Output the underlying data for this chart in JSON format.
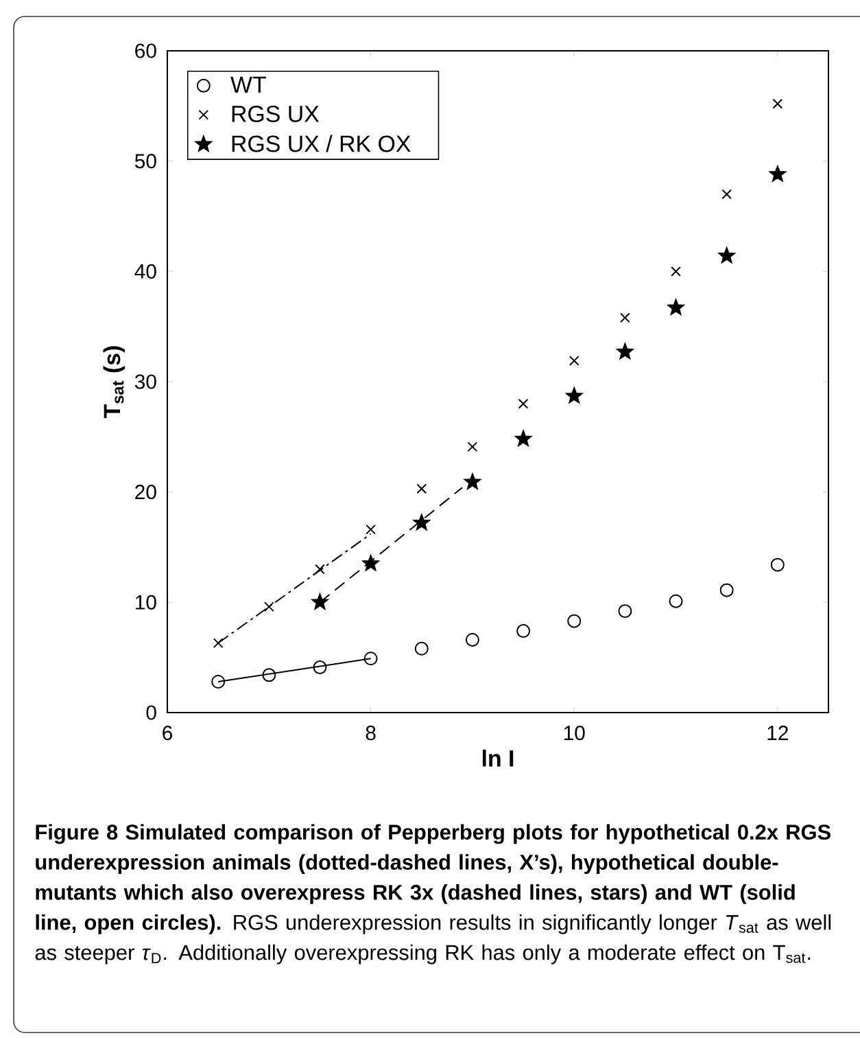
{
  "chart_data": {
    "type": "scatter",
    "xlabel": "ln I",
    "ylabel": "T$_{sat}$ (s)",
    "xlim": [
      6,
      12.5
    ],
    "xticks": [
      6,
      8,
      10,
      12
    ],
    "ylim": [
      0,
      60
    ],
    "yticks": [
      0,
      10,
      20,
      30,
      40,
      50,
      60
    ],
    "legend": "top left",
    "grid": false,
    "series": [
      {
        "name": "WT",
        "color": "#000000",
        "marker": "circle",
        "x": [
          6.5,
          7,
          7.5,
          8,
          8.5,
          9,
          9.5,
          10,
          10.5,
          11,
          11.5,
          12
        ],
        "values": [
          2.8,
          3.4,
          4.1,
          4.9,
          5.8,
          6.6,
          7.4,
          8.3,
          9.2,
          10.1,
          11.1,
          13.4
        ]
      },
      {
        "name": "RGS UX",
        "color": "#000000",
        "marker": "cross",
        "x": [
          6.5,
          7,
          7.5,
          8,
          8.5,
          9,
          9.5,
          10,
          10.5,
          11,
          11.5,
          12
        ],
        "values": [
          6.3,
          9.6,
          13.0,
          16.6,
          20.3,
          24.1,
          28.0,
          31.9,
          35.8,
          40.0,
          47.0,
          55.2
        ]
      },
      {
        "name": "RGS UX / RK OX",
        "color": "#000000",
        "marker": "star",
        "x": [
          7.5,
          8,
          8.5,
          9,
          9.5,
          10,
          10.5,
          11,
          11.5,
          12
        ],
        "values": [
          10.0,
          13.5,
          17.2,
          20.9,
          24.8,
          28.7,
          32.7,
          36.7,
          41.4,
          48.8
        ]
      },
      {
        "type": "line",
        "color": "#000000",
        "line_style": "solid",
        "marker": "none",
        "x": [
          6.5,
          8
        ],
        "values": [
          2.8,
          4.9
        ]
      },
      {
        "type": "line",
        "color": "#000000",
        "line_style": "dashdot",
        "marker": "none",
        "x": [
          6.5,
          8
        ],
        "values": [
          6.3,
          16.2
        ]
      },
      {
        "type": "line",
        "color": "#000000",
        "line_style": "dashed",
        "marker": "none",
        "x": [
          7.5,
          8.9
        ],
        "values": [
          10.0,
          20.4
        ]
      }
    ],
    "annotations": [
      "**Figure 8 Simulated comparison of Pepperberg plots for hypothetical 0.2x RGS underexpression animals (dotted-dashed lines, X’s), hypothetical double-mutants which also overexpress RK 3x (dashed lines, stars) and WT (solid line, open circles).** RGS underexpression results in significantly longer *T*$_{sat}$ as well as steeper *τ*$_{D}$. Additionally overexpressing RK has only a moderate effect on T$_{sat}$."
    ]
  }
}
